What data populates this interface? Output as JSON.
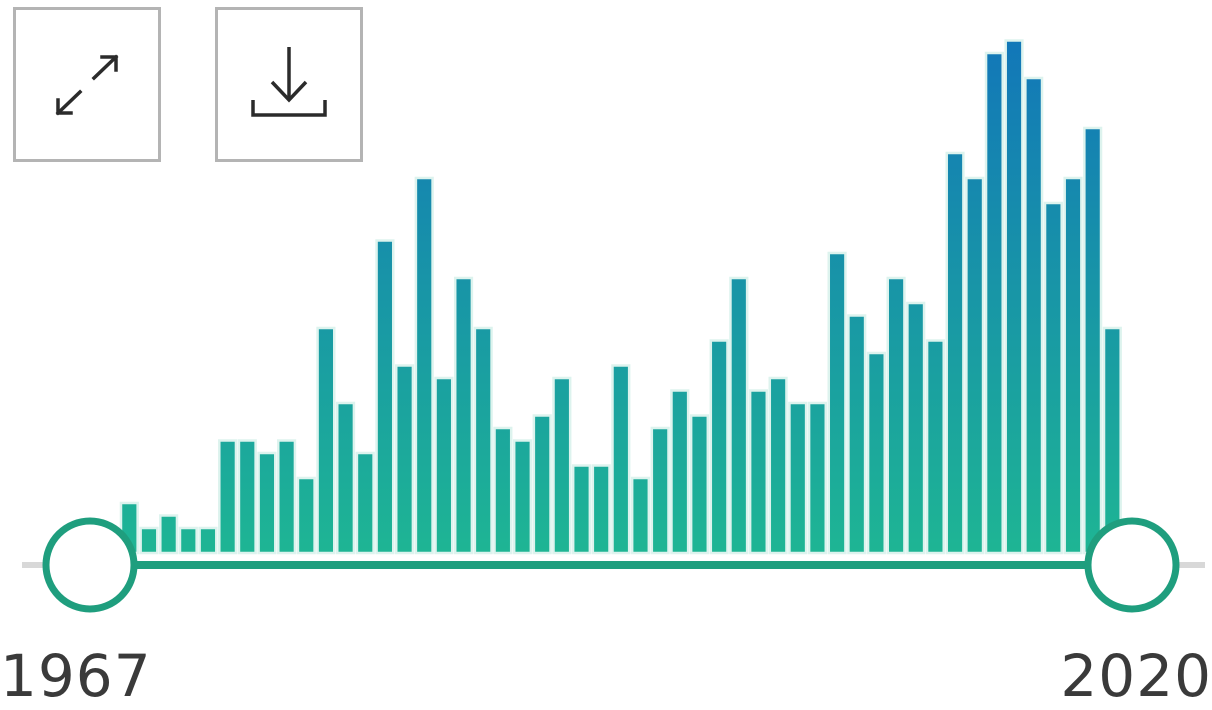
{
  "toolbar": {
    "expand_icon": "expand-arrows-icon",
    "download_icon": "download-icon"
  },
  "range_slider": {
    "start_year": "1967",
    "end_year": "2020"
  },
  "chart_data": {
    "type": "bar",
    "title": "",
    "xlabel": "",
    "ylabel": "",
    "x": [
      1967,
      1968,
      1969,
      1970,
      1971,
      1972,
      1973,
      1974,
      1975,
      1976,
      1977,
      1978,
      1979,
      1980,
      1981,
      1982,
      1983,
      1984,
      1985,
      1986,
      1987,
      1988,
      1989,
      1990,
      1991,
      1992,
      1993,
      1994,
      1995,
      1996,
      1997,
      1998,
      1999,
      2000,
      2001,
      2002,
      2003,
      2004,
      2005,
      2006,
      2007,
      2008,
      2009,
      2010,
      2011,
      2012,
      2013,
      2014,
      2015,
      2016,
      2017,
      2018,
      2019,
      2020
    ],
    "values": [
      0,
      1,
      2,
      1,
      1.5,
      1,
      1,
      4.5,
      4.5,
      4,
      4.5,
      3,
      9,
      6,
      4,
      12.5,
      7.5,
      15,
      7,
      11,
      9,
      5,
      4.5,
      5.5,
      7,
      3.5,
      3.5,
      7.5,
      3,
      5,
      6.5,
      5.5,
      8.5,
      11,
      6.5,
      7,
      6,
      6,
      12,
      9.5,
      8,
      11,
      10,
      8.5,
      16,
      15,
      20,
      20.5,
      19,
      14,
      15,
      17,
      9,
      0
    ],
    "ylim": [
      0,
      21
    ],
    "grid": false,
    "legend": "none",
    "colors": {
      "bar_bottom": "#1eb594",
      "bar_top": "#1276b9",
      "bar_edge": "#ddf3ee",
      "track_active": "#1f9e7e",
      "track_inactive": "#d8d8d8",
      "handle_stroke": "#1f9e7e"
    }
  }
}
